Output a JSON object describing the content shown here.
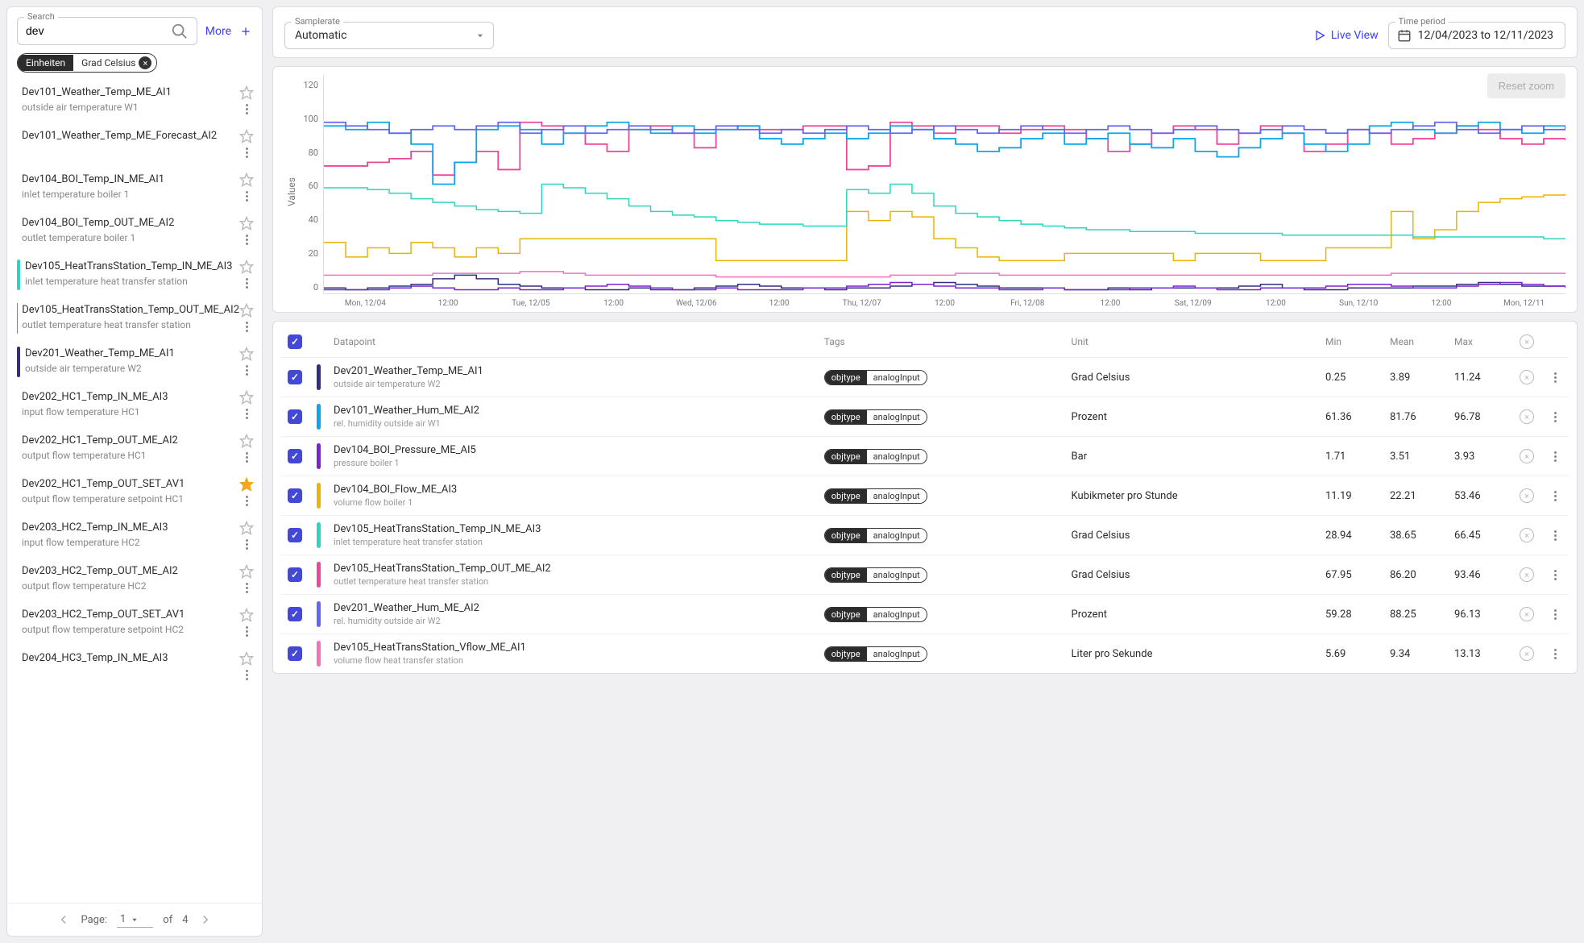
{
  "sidebar": {
    "search_label": "Search",
    "search_value": "dev",
    "more_label": "More",
    "chip_key": "Einheiten",
    "chip_value": "Grad Celsius",
    "items": [
      {
        "name": "Dev101_Weather_Temp_ME_AI1",
        "desc": "outside air temperature W1",
        "color": null,
        "starred": false
      },
      {
        "name": "Dev101_Weather_Temp_ME_Forecast_AI2",
        "desc": "",
        "color": null,
        "starred": false
      },
      {
        "name": "Dev104_BOI_Temp_IN_ME_AI1",
        "desc": "inlet temperature boiler 1",
        "color": null,
        "starred": false
      },
      {
        "name": "Dev104_BOI_Temp_OUT_ME_AI2",
        "desc": "outlet temperature boiler 1",
        "color": null,
        "starred": false
      },
      {
        "name": "Dev105_HeatTransStation_Temp_IN_ME_AI3",
        "desc": "inlet temperature heat transfer station",
        "color": "#2dd4bf",
        "starred": false
      },
      {
        "name": "Dev105_HeatTransStation_Temp_OUT_ME_AI2",
        "desc": "outlet temperature heat transfer station",
        "color": "#ec4899",
        "starred": false
      },
      {
        "name": "Dev201_Weather_Temp_ME_AI1",
        "desc": "outside air temperature W2",
        "color": "#312e81",
        "starred": false
      },
      {
        "name": "Dev202_HC1_Temp_IN_ME_AI3",
        "desc": "input flow temperature HC1",
        "color": null,
        "starred": false
      },
      {
        "name": "Dev202_HC1_Temp_OUT_ME_AI2",
        "desc": "output flow temperature HC1",
        "color": null,
        "starred": false
      },
      {
        "name": "Dev202_HC1_Temp_OUT_SET_AV1",
        "desc": "output flow temperature setpoint HC1",
        "color": null,
        "starred": true
      },
      {
        "name": "Dev203_HC2_Temp_IN_ME_AI3",
        "desc": "input flow temperature HC2",
        "color": null,
        "starred": false
      },
      {
        "name": "Dev203_HC2_Temp_OUT_ME_AI2",
        "desc": "output flow temperature HC2",
        "color": null,
        "starred": false
      },
      {
        "name": "Dev203_HC2_Temp_OUT_SET_AV1",
        "desc": "output flow temperature setpoint HC2",
        "color": null,
        "starred": false
      },
      {
        "name": "Dev204_HC3_Temp_IN_ME_AI3",
        "desc": "",
        "color": null,
        "starred": false
      }
    ],
    "pager": {
      "label": "Page:",
      "current": "1",
      "of_label": "of",
      "total": "4"
    }
  },
  "topbar": {
    "samplerate_label": "Samplerate",
    "samplerate_value": "Automatic",
    "liveview_label": "Live View",
    "timeperiod_label": "Time period",
    "timeperiod_value": "12/04/2023 to 12/11/2023"
  },
  "chart": {
    "reset_label": "Reset zoom",
    "y_label": "Values",
    "y_ticks": [
      "120",
      "100",
      "80",
      "60",
      "40",
      "20",
      "0"
    ],
    "ylim": [
      0,
      120
    ],
    "x_ticks": [
      "Mon, 12/04",
      "12:00",
      "Tue, 12/05",
      "12:00",
      "Wed, 12/06",
      "12:00",
      "Thu, 12/07",
      "12:00",
      "Fri, 12/08",
      "12:00",
      "Sat, 12/09",
      "12:00",
      "Sun, 12/10",
      "12:00",
      "Mon, 12/11"
    ],
    "background_color": "#ffffff",
    "series": [
      {
        "color": "#312e81",
        "width": 1.5,
        "data": [
          3,
          2,
          3,
          4,
          5,
          8,
          10,
          8,
          5,
          4,
          3,
          3,
          2,
          2,
          3,
          2,
          2,
          3,
          4,
          5,
          4,
          3,
          3,
          2,
          3,
          3,
          4,
          5,
          6,
          5,
          4,
          3,
          3,
          3,
          2,
          2,
          3,
          2,
          3,
          3,
          3,
          3,
          4,
          5,
          3,
          2,
          2,
          3,
          3,
          3,
          4,
          4,
          5,
          6,
          5,
          4,
          4,
          3
        ]
      },
      {
        "color": "#f472b6",
        "width": 1.5,
        "data": [
          10,
          10,
          10,
          10,
          10,
          11,
          11,
          11,
          11,
          12,
          12,
          11,
          10,
          10,
          10,
          10,
          10,
          10,
          9,
          9,
          9,
          9,
          9,
          9,
          9,
          9,
          10,
          10,
          10,
          11,
          11,
          10,
          10,
          10,
          10,
          10,
          10,
          10,
          10,
          10,
          10,
          10,
          10,
          10,
          10,
          10,
          10,
          10,
          10,
          11,
          11,
          11,
          11,
          11,
          11,
          11,
          11,
          11
        ]
      },
      {
        "color": "#eab308",
        "width": 1.5,
        "data": [
          28,
          20,
          25,
          22,
          28,
          25,
          20,
          25,
          22,
          30,
          30,
          30,
          30,
          30,
          30,
          30,
          30,
          30,
          18,
          18,
          18,
          18,
          18,
          18,
          45,
          40,
          45,
          42,
          30,
          25,
          20,
          18,
          18,
          18,
          22,
          22,
          22,
          22,
          22,
          18,
          22,
          22,
          22,
          18,
          18,
          18,
          25,
          25,
          25,
          45,
          30,
          35,
          45,
          50,
          52,
          53,
          54,
          55
        ]
      },
      {
        "color": "#2dd4bf",
        "width": 1.5,
        "data": [
          58,
          58,
          57,
          55,
          52,
          50,
          48,
          46,
          45,
          44,
          60,
          58,
          55,
          52,
          48,
          45,
          43,
          42,
          40,
          39,
          38,
          38,
          37,
          37,
          57,
          55,
          60,
          55,
          48,
          44,
          42,
          40,
          38,
          37,
          36,
          35,
          35,
          34,
          34,
          34,
          33,
          33,
          33,
          33,
          32,
          32,
          32,
          32,
          32,
          32,
          31,
          31,
          31,
          31,
          31,
          31,
          30,
          30
        ]
      },
      {
        "color": "#ec4899",
        "width": 1.8,
        "data": [
          70,
          70,
          72,
          74,
          78,
          65,
          72,
          78,
          68,
          94,
          92,
          88,
          82,
          78,
          90,
          92,
          88,
          80,
          90,
          92,
          90,
          90,
          92,
          92,
          68,
          70,
          94,
          92,
          88,
          92,
          92,
          88,
          90,
          92,
          90,
          85,
          78,
          82,
          88,
          92,
          90,
          82,
          88,
          92,
          88,
          78,
          82,
          90,
          88,
          82,
          85,
          88,
          92,
          90,
          85,
          82,
          85,
          84
        ]
      },
      {
        "color": "#0ea5e9",
        "width": 1.8,
        "data": [
          92,
          90,
          94,
          88,
          82,
          60,
          72,
          90,
          92,
          90,
          82,
          88,
          92,
          94,
          90,
          88,
          92,
          88,
          90,
          92,
          85,
          82,
          85,
          88,
          85,
          88,
          92,
          90,
          85,
          82,
          78,
          80,
          85,
          88,
          82,
          85,
          88,
          82,
          80,
          85,
          78,
          75,
          80,
          85,
          88,
          82,
          78,
          82,
          92,
          94,
          90,
          88,
          92,
          94,
          90,
          88,
          92,
          90
        ]
      },
      {
        "color": "#6366f1",
        "width": 1.8,
        "data": [
          94,
          92,
          90,
          88,
          90,
          92,
          90,
          92,
          94,
          88,
          90,
          92,
          88,
          90,
          92,
          90,
          88,
          90,
          92,
          90,
          88,
          90,
          88,
          90,
          92,
          90,
          88,
          90,
          92,
          90,
          88,
          90,
          92,
          90,
          88,
          90,
          92,
          90,
          88,
          90,
          92,
          90,
          88,
          90,
          92,
          90,
          88,
          90,
          88,
          90,
          92,
          94,
          90,
          88,
          90,
          92,
          90,
          92
        ]
      },
      {
        "color": "#7e22ce",
        "width": 1.5,
        "data": [
          2,
          2,
          2,
          3,
          4,
          3,
          2,
          2,
          3,
          2,
          2,
          3,
          4,
          5,
          4,
          3,
          2,
          2,
          3,
          2,
          2,
          2,
          3,
          3,
          4,
          5,
          6,
          5,
          4,
          3,
          3,
          2,
          2,
          3,
          2,
          2,
          2,
          3,
          3,
          4,
          3,
          2,
          2,
          3,
          3,
          3,
          4,
          5,
          5,
          4,
          3,
          3,
          4,
          5,
          6,
          5,
          4,
          4
        ]
      }
    ]
  },
  "table": {
    "headers": {
      "dp": "Datapoint",
      "tags": "Tags",
      "unit": "Unit",
      "min": "Min",
      "mean": "Mean",
      "max": "Max"
    },
    "rows": [
      {
        "checked": true,
        "color": "#312e81",
        "name": "Dev201_Weather_Temp_ME_AI1",
        "desc": "outside air temperature W2",
        "tag_key": "objtype",
        "tag_val": "analogInput",
        "unit": "Grad Celsius",
        "min": "0.25",
        "mean": "3.89",
        "max": "11.24"
      },
      {
        "checked": true,
        "color": "#0ea5e9",
        "name": "Dev101_Weather_Hum_ME_AI2",
        "desc": "rel. humidity outside air W1",
        "tag_key": "objtype",
        "tag_val": "analogInput",
        "unit": "Prozent",
        "min": "61.36",
        "mean": "81.76",
        "max": "96.78"
      },
      {
        "checked": true,
        "color": "#7e22ce",
        "name": "Dev104_BOI_Pressure_ME_AI5",
        "desc": "pressure boiler 1",
        "tag_key": "objtype",
        "tag_val": "analogInput",
        "unit": "Bar",
        "min": "1.71",
        "mean": "3.51",
        "max": "3.93"
      },
      {
        "checked": true,
        "color": "#eab308",
        "name": "Dev104_BOI_Flow_ME_AI3",
        "desc": "volume flow boiler 1",
        "tag_key": "objtype",
        "tag_val": "analogInput",
        "unit": "Kubikmeter pro Stunde",
        "min": "11.19",
        "mean": "22.21",
        "max": "53.46"
      },
      {
        "checked": true,
        "color": "#2dd4bf",
        "name": "Dev105_HeatTransStation_Temp_IN_ME_AI3",
        "desc": "inlet temperature heat transfer station",
        "tag_key": "objtype",
        "tag_val": "analogInput",
        "unit": "Grad Celsius",
        "min": "28.94",
        "mean": "38.65",
        "max": "66.45"
      },
      {
        "checked": true,
        "color": "#ec4899",
        "name": "Dev105_HeatTransStation_Temp_OUT_ME_AI2",
        "desc": "outlet temperature heat transfer station",
        "tag_key": "objtype",
        "tag_val": "analogInput",
        "unit": "Grad Celsius",
        "min": "67.95",
        "mean": "86.20",
        "max": "93.46"
      },
      {
        "checked": true,
        "color": "#6366f1",
        "name": "Dev201_Weather_Hum_ME_AI2",
        "desc": "rel. humidity outside air W2",
        "tag_key": "objtype",
        "tag_val": "analogInput",
        "unit": "Prozent",
        "min": "59.28",
        "mean": "88.25",
        "max": "96.13"
      },
      {
        "checked": true,
        "color": "#f472b6",
        "name": "Dev105_HeatTransStation_Vflow_ME_AI1",
        "desc": "volume flow heat transfer station",
        "tag_key": "objtype",
        "tag_val": "analogInput",
        "unit": "Liter pro Sekunde",
        "min": "5.69",
        "mean": "9.34",
        "max": "13.13"
      }
    ]
  }
}
